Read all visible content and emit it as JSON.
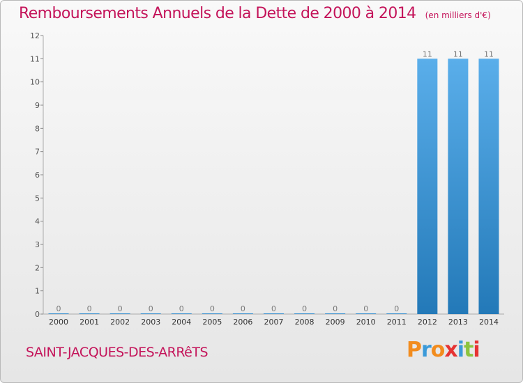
{
  "header": {
    "title": "Remboursements Annuels de la Dette de 2000 à 2014",
    "unit": "(en milliers d'€)"
  },
  "footer": {
    "location": "SAINT-JACQUES-DES-ARRêTS",
    "logo_text": "Proxiti",
    "logo_colors": [
      "#f28c1e",
      "#3b9ad9",
      "#f28c1e",
      "#e63333",
      "#3b9ad9",
      "#8cc43f",
      "#e63333"
    ]
  },
  "chart_data": {
    "type": "bar",
    "title": "Remboursements Annuels de la Dette de 2000 à 2014",
    "subtitle": "(en milliers d'€)",
    "categories": [
      "2000",
      "2001",
      "2002",
      "2003",
      "2004",
      "2005",
      "2006",
      "2007",
      "2008",
      "2009",
      "2010",
      "2011",
      "2012",
      "2013",
      "2014"
    ],
    "values": [
      0,
      0,
      0,
      0,
      0,
      0,
      0,
      0,
      0,
      0,
      0,
      0,
      11,
      11,
      11
    ],
    "data_labels": [
      "0",
      "0",
      "0",
      "0",
      "0",
      "0",
      "0",
      "0",
      "0",
      "0",
      "0",
      "0",
      "11",
      "11",
      "11"
    ],
    "yticks": [
      0,
      1,
      2,
      3,
      4,
      5,
      6,
      7,
      8,
      9,
      10,
      11,
      12
    ],
    "ylim": [
      0,
      12
    ],
    "grid": false,
    "legend": "none",
    "bar_color_top": "#5aaeea",
    "bar_color_bottom": "#2379b8"
  }
}
